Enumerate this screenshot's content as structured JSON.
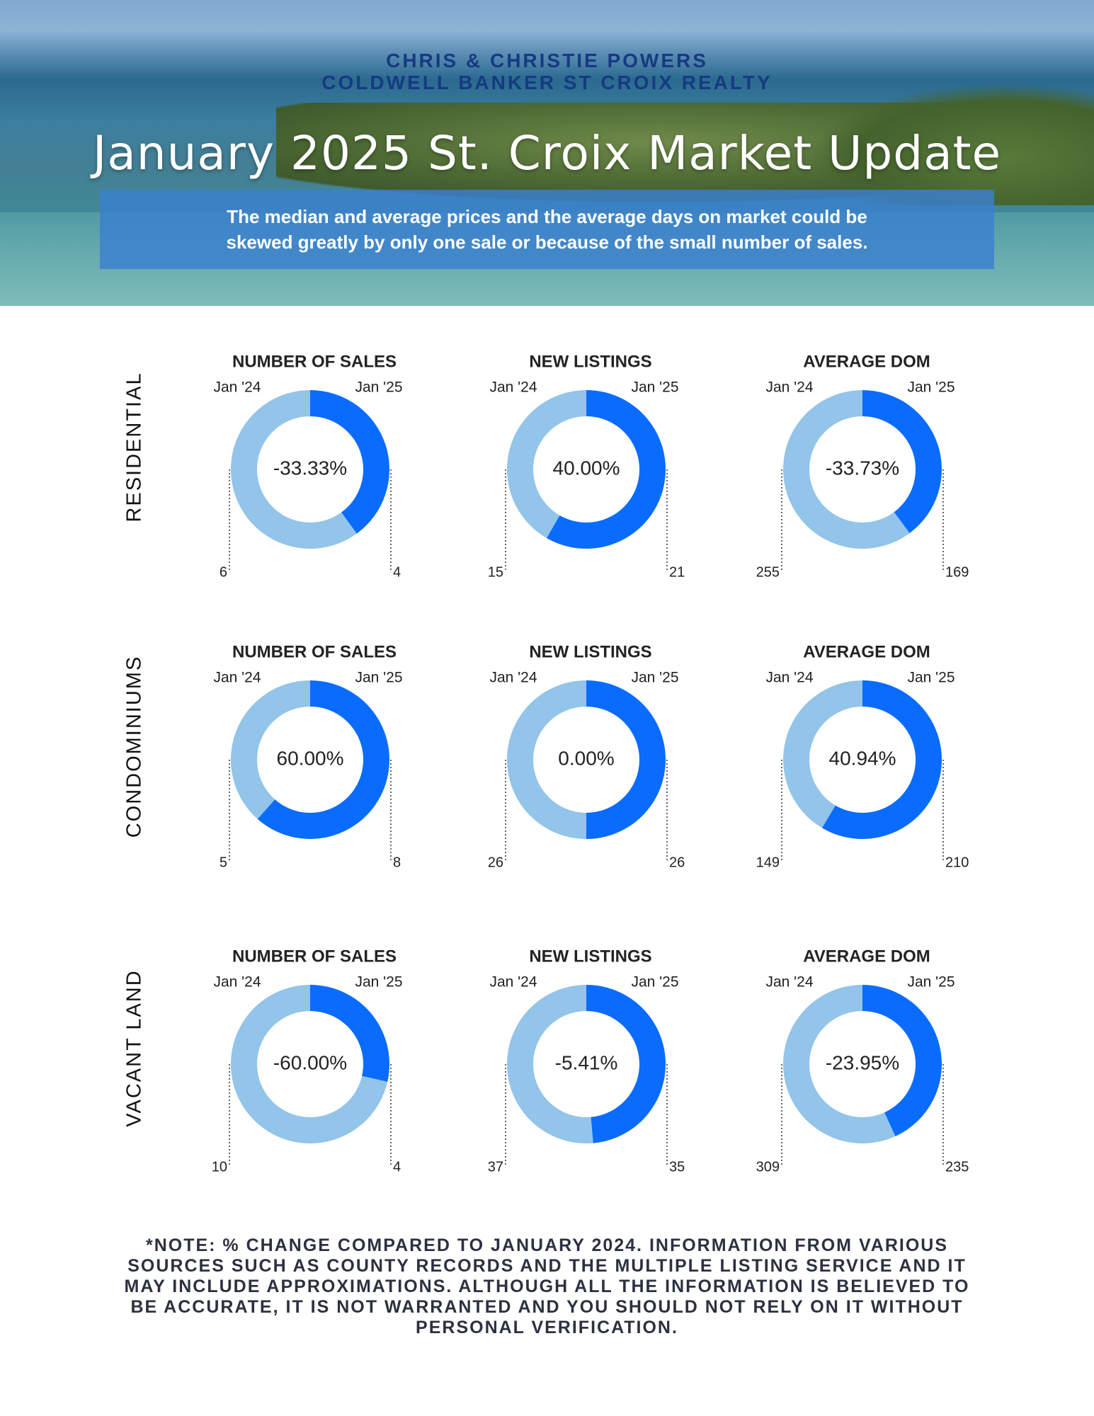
{
  "header": {
    "agent_line1": "CHRIS & CHRISTIE POWERS",
    "agent_line2": "COLDWELL BANKER ST CROIX REALTY",
    "title": "January 2025 St. Croix Market Update",
    "disclaimer_line1": "The median and average prices and  the average days on market could be",
    "disclaimer_line2": "skewed greatly by only one sale or because of the small number of sales."
  },
  "colors": {
    "prev": "#93c4ea",
    "curr": "#0a6cff",
    "text": "#222222",
    "title_blue": "#163a82"
  },
  "row_labels": [
    "RESIDENTIAL",
    "CONDOMINIUMS",
    "VACANT LAND"
  ],
  "chart_data": [
    {
      "type": "pie",
      "category": "RESIDENTIAL",
      "title": "NUMBER OF SALES",
      "labels": [
        "Jan '24",
        "Jan '25"
      ],
      "values": [
        6,
        4
      ],
      "value_labels": [
        "6",
        "4"
      ],
      "change": "-33.33%"
    },
    {
      "type": "pie",
      "category": "RESIDENTIAL",
      "title": "NEW LISTINGS",
      "labels": [
        "Jan '24",
        "Jan '25"
      ],
      "values": [
        15,
        21
      ],
      "value_labels": [
        "15",
        "21"
      ],
      "change": "40.00%"
    },
    {
      "type": "pie",
      "category": "RESIDENTIAL",
      "title": "AVERAGE DOM",
      "labels": [
        "Jan '24",
        "Jan '25"
      ],
      "values": [
        255,
        169
      ],
      "value_labels": [
        "255",
        "169"
      ],
      "change": "-33.73%"
    },
    {
      "type": "pie",
      "category": "CONDOMINIUMS",
      "title": "NUMBER OF SALES",
      "labels": [
        "Jan '24",
        "Jan '25"
      ],
      "values": [
        5,
        8
      ],
      "value_labels": [
        "5",
        "8"
      ],
      "change": "60.00%"
    },
    {
      "type": "pie",
      "category": "CONDOMINIUMS",
      "title": "NEW LISTINGS",
      "labels": [
        "Jan '24",
        "Jan '25"
      ],
      "values": [
        26,
        26
      ],
      "value_labels": [
        "26",
        "26"
      ],
      "change": "0.00%"
    },
    {
      "type": "pie",
      "category": "CONDOMINIUMS",
      "title": "AVERAGE DOM",
      "labels": [
        "Jan '24",
        "Jan '25"
      ],
      "values": [
        149,
        210
      ],
      "value_labels": [
        "149",
        "210"
      ],
      "change": "40.94%"
    },
    {
      "type": "pie",
      "category": "VACANT LAND",
      "title": "NUMBER OF SALES",
      "labels": [
        "Jan '24",
        "Jan '25"
      ],
      "values": [
        10,
        4
      ],
      "value_labels": [
        "10",
        "4"
      ],
      "change": "-60.00%"
    },
    {
      "type": "pie",
      "category": "VACANT LAND",
      "title": "NEW LISTINGS",
      "labels": [
        "Jan '24",
        "Jan '25"
      ],
      "values": [
        37,
        35
      ],
      "value_labels": [
        "37",
        "35"
      ],
      "change": "-5.41%"
    },
    {
      "type": "pie",
      "category": "VACANT LAND",
      "title": "AVERAGE DOM",
      "labels": [
        "Jan '24",
        "Jan '25"
      ],
      "values": [
        309,
        235
      ],
      "value_labels": [
        "309",
        "235"
      ],
      "change": "-23.95%"
    }
  ],
  "footnote": {
    "line1": "*NOTE: % CHANGE COMPARED TO JANUARY 2024. INFORMATION FROM VARIOUS",
    "line2": "SOURCES SUCH AS COUNTY RECORDS AND THE MULTIPLE LISTING SERVICE AND IT",
    "line3": "MAY INCLUDE APPROXIMATIONS. ALTHOUGH ALL THE INFORMATION IS BELIEVED TO",
    "line4": "BE ACCURATE, IT IS NOT WARRANTED AND YOU SHOULD NOT RELY ON IT WITHOUT",
    "line5": "PERSONAL VERIFICATION."
  }
}
